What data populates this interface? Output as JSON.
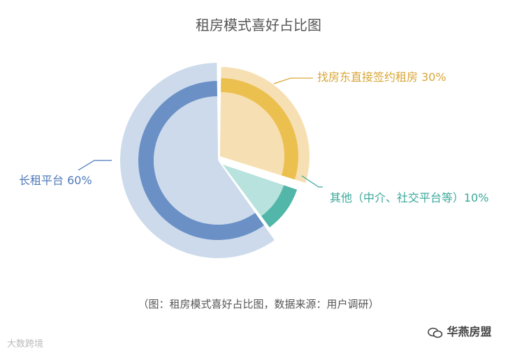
{
  "title": "租房模式喜好占比图",
  "caption": "（图：租房模式喜好占比图，数据来源：用户调研）",
  "watermark_left": "大数跨境",
  "watermark_right": "华燕房盟",
  "watermark_icon": "wechat-icon",
  "chart_data": {
    "type": "pie",
    "title": "租房模式喜好占比图",
    "slices": [
      {
        "name": "找房东直接签约租房",
        "value": 30,
        "label": "找房东直接签约租房 30%",
        "color_ring": "#ecc04f",
        "color_light": "#f6e0b3",
        "label_color": "#d9a637"
      },
      {
        "name": "其他（中介、社交平台等）",
        "value": 10,
        "label": "其他（中介、社交平台等）10%",
        "color_ring": "#52b6a9",
        "color_light": "#b8e2dd",
        "label_color": "#3aa89a"
      },
      {
        "name": "长租平台",
        "value": 60,
        "label": "长租平台 60%",
        "color_ring": "#6a90c6",
        "color_light": "#ccdaeb",
        "label_color": "#4e79b9"
      }
    ]
  }
}
